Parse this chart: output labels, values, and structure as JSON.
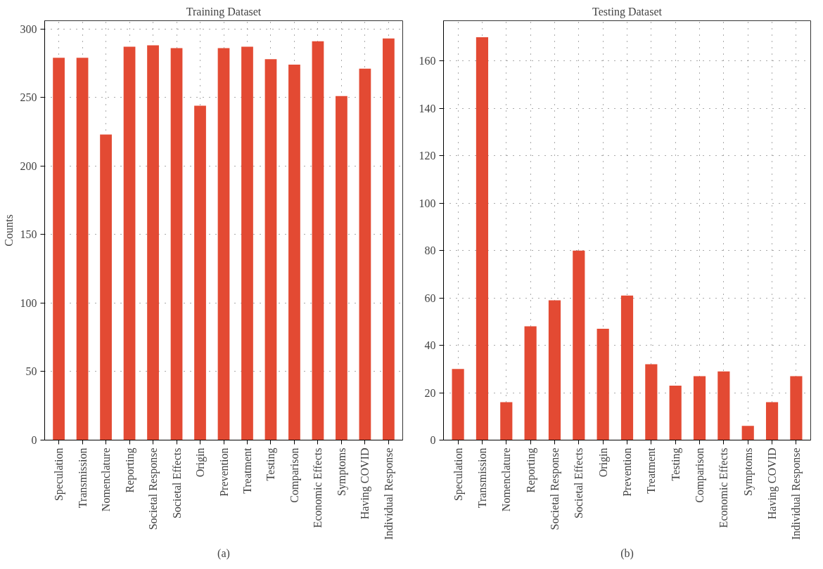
{
  "chart_data": [
    {
      "type": "bar",
      "title": "Training Dataset",
      "ylabel": "Counts",
      "categories": [
        "Speculation",
        "Transmission",
        "Nomenclature",
        "Reporting",
        "Societal Response",
        "Societal Effects",
        "Origin",
        "Prevention",
        "Treatment",
        "Testing",
        "Comparison",
        "Economic Effects",
        "Symptoms",
        "Having COVID",
        "Individual Response"
      ],
      "values": [
        279,
        279,
        223,
        287,
        288,
        286,
        244,
        286,
        287,
        278,
        274,
        291,
        251,
        271,
        293
      ],
      "color": "#e34a33",
      "ylim": [
        0,
        306
      ],
      "yticks": [
        0,
        50,
        100,
        150,
        200,
        250,
        300
      ],
      "grid": true,
      "annotations": [
        "(a)"
      ]
    },
    {
      "type": "bar",
      "title": "Testing Dataset",
      "categories": [
        "Speculation",
        "Transmission",
        "Nomenclature",
        "Reporting",
        "Societal Response",
        "Societal Effects",
        "Origin",
        "Prevention",
        "Treatment",
        "Testing",
        "Comparison",
        "Economic Effects",
        "Symptoms",
        "Having COVID",
        "Individual Response"
      ],
      "values": [
        30,
        170,
        16,
        48,
        59,
        80,
        47,
        61,
        32,
        23,
        27,
        29,
        6,
        16,
        27
      ],
      "color": "#e34a33",
      "ylim": [
        0,
        177
      ],
      "yticks": [
        0,
        20,
        40,
        60,
        80,
        100,
        120,
        140,
        160
      ],
      "grid": true,
      "annotations": [
        "(b)"
      ]
    }
  ]
}
